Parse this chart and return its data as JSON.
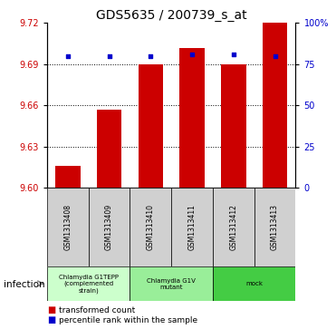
{
  "title": "GDS5635 / 200739_s_at",
  "samples": [
    "GSM1313408",
    "GSM1313409",
    "GSM1313410",
    "GSM1313411",
    "GSM1313412",
    "GSM1313413"
  ],
  "bar_values": [
    9.616,
    9.657,
    9.69,
    9.702,
    9.69,
    9.72
  ],
  "percentile_values": [
    80,
    80,
    80,
    81,
    81,
    80
  ],
  "ylim_left": [
    9.6,
    9.72
  ],
  "ylim_right": [
    0,
    100
  ],
  "yticks_left": [
    9.6,
    9.63,
    9.66,
    9.69,
    9.72
  ],
  "yticks_right": [
    0,
    25,
    50,
    75,
    100
  ],
  "bar_color": "#cc0000",
  "dot_color": "#0000cc",
  "bar_width": 0.6,
  "group_info": [
    {
      "indices": [
        0,
        1
      ],
      "label": "Chlamydia G1TEPP\n(complemented\nstrain)",
      "color": "#ccffcc"
    },
    {
      "indices": [
        2,
        3
      ],
      "label": "Chlamydia G1V\nmutant",
      "color": "#99ee99"
    },
    {
      "indices": [
        4,
        5
      ],
      "label": "mock",
      "color": "#44cc44"
    }
  ],
  "factor_label": "infection",
  "legend_items": [
    {
      "label": "transformed count",
      "color": "#cc0000"
    },
    {
      "label": "percentile rank within the sample",
      "color": "#0000cc"
    }
  ],
  "bg_color": "#d0d0d0",
  "label_color_left": "#cc0000",
  "label_color_right": "#0000cc",
  "title_fontsize": 10
}
